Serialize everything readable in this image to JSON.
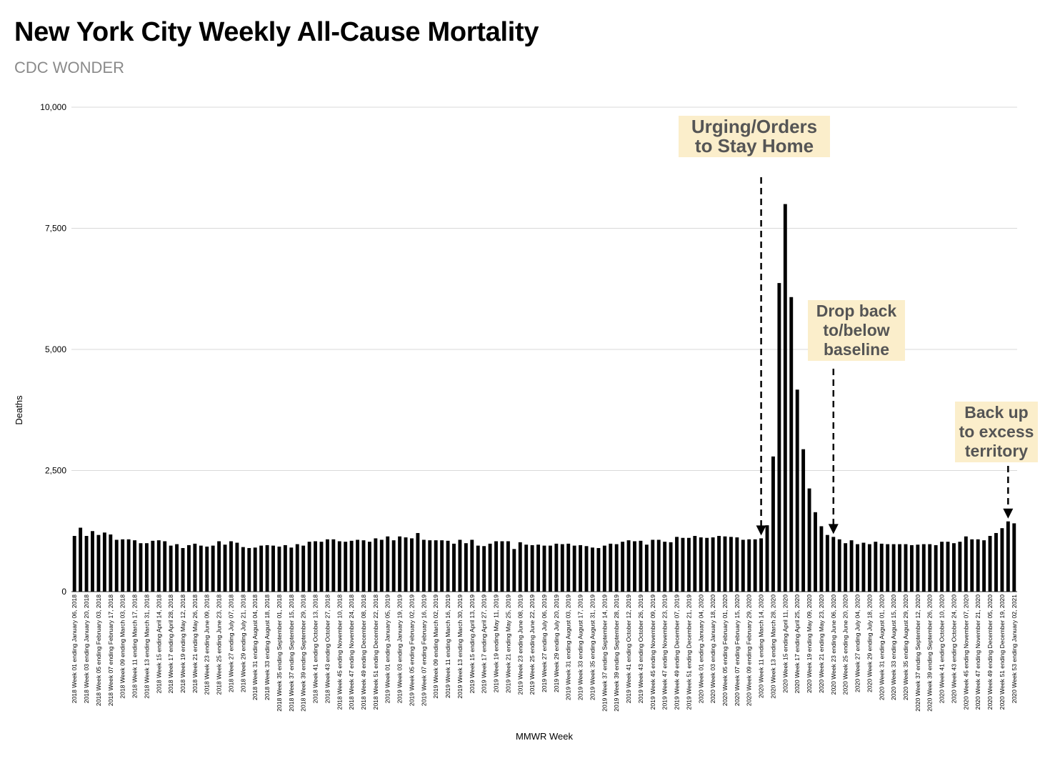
{
  "title": "New York City Weekly All-Cause Mortality",
  "subtitle": "CDC WONDER",
  "annotations": [
    {
      "id": "stay",
      "lines": [
        "Urging/Orders",
        "to Stay Home"
      ],
      "week_index": 114
    },
    {
      "id": "drop",
      "lines": [
        "Drop back",
        "to/below",
        "baseline"
      ],
      "week_index": 126
    },
    {
      "id": "back",
      "lines": [
        "Back up",
        "to excess",
        "territory"
      ],
      "week_index": 155
    }
  ],
  "chart_data": {
    "type": "bar",
    "title": "New York City Weekly All-Cause Mortality",
    "subtitle": "CDC WONDER",
    "xlabel": "MMWR Week",
    "ylabel": "Deaths",
    "ylim": [
      0,
      10000
    ],
    "yticks": [
      0,
      2500,
      5000,
      7500,
      10000
    ],
    "ytick_labels": [
      "0",
      "2,500",
      "5,000",
      "7,500",
      "10,000"
    ],
    "grid": true,
    "bar_color": "#000000",
    "xtick_labels": [
      "2018 Week 01 ending January 06, 2018",
      "2018 Week 03 ending January 20, 2018",
      "2018 Week 05 ending February 03, 2018",
      "2018 Week 07 ending February 17, 2018",
      "2018 Week 09 ending March 03, 2018",
      "2018 Week 11 ending March 17, 2018",
      "2018 Week 13 ending March 31, 2018",
      "2018 Week 15 ending April 14, 2018",
      "2018 Week 17 ending April 28, 2018",
      "2018 Week 19 ending May 12, 2018",
      "2018 Week 21 ending May 26, 2018",
      "2018 Week 23 ending June 09, 2018",
      "2018 Week 25 ending June 23, 2018",
      "2018 Week 27 ending July 07, 2018",
      "2018 Week 29 ending July 21, 2018",
      "2018 Week 31 ending August 04, 2018",
      "2018 Week 33 ending August 18, 2018",
      "2018 Week 35 ending September 01, 2018",
      "2018 Week 37 ending September 15, 2018",
      "2018 Week 39 ending September 29, 2018",
      "2018 Week 41 ending October 13, 2018",
      "2018 Week 43 ending October 27, 2018",
      "2018 Week 45 ending November 10, 2018",
      "2018 Week 47 ending November 24, 2018",
      "2018 Week 49 ending December 08, 2018",
      "2018 Week 51 ending December 22, 2018",
      "2019 Week 01 ending January 05, 2019",
      "2019 Week 03 ending January 19, 2019",
      "2019 Week 05 ending February 02, 2019",
      "2019 Week 07 ending February 16, 2019",
      "2019 Week 09 ending March 02, 2019",
      "2019 Week 11 ending March 16, 2019",
      "2019 Week 13 ending March 30, 2019",
      "2019 Week 15 ending April 13, 2019",
      "2019 Week 17 ending April 27, 2019",
      "2019 Week 19 ending May 11, 2019",
      "2019 Week 21 ending May 25, 2019",
      "2019 Week 23 ending June 08, 2019",
      "2019 Week 25 ending June 22, 2019",
      "2019 Week 27 ending July 06, 2019",
      "2019 Week 29 ending July 20, 2019",
      "2019 Week 31 ending August 03, 2019",
      "2019 Week 33 ending August 17, 2019",
      "2019 Week 35 ending August 31, 2019",
      "2019 Week 37 ending September 14, 2019",
      "2019 Week 39 ending September 28, 2019",
      "2019 Week 41 ending October 12, 2019",
      "2019 Week 43 ending October 26, 2019",
      "2019 Week 45 ending November 09, 2019",
      "2019 Week 47 ending November 23, 2019",
      "2019 Week 49 ending December 07, 2019",
      "2019 Week 51 ending December 21, 2019",
      "2020 Week 01 ending January 04, 2020",
      "2020 Week 03 ending January 18, 2020",
      "2020 Week 05 ending February 01, 2020",
      "2020 Week 07 ending February 15, 2020",
      "2020 Week 09 ending February 29, 2020",
      "2020 Week 11 ending March 14, 2020",
      "2020 Week 13 ending March 28, 2020",
      "2020 Week 15 ending April 11, 2020",
      "2020 Week 17 ending April 25, 2020",
      "2020 Week 19 ending May 09, 2020",
      "2020 Week 21 ending May 23, 2020",
      "2020 Week 23 ending June 06, 2020",
      "2020 Week 25 ending June 20, 2020",
      "2020 Week 27 ending July 04, 2020",
      "2020 Week 29 ending July 18, 2020",
      "2020 Week 31 ending August 01, 2020",
      "2020 Week 33 ending August 15, 2020",
      "2020 Week 35 ending August 29, 2020",
      "2020 Week 37 ending September 12, 2020",
      "2020 Week 39 ending September 26, 2020",
      "2020 Week 41 ending October 10, 2020",
      "2020 Week 43 ending October 24, 2020",
      "2020 Week 45 ending November 07, 2020",
      "2020 Week 47 ending November 21, 2020",
      "2020 Week 49 ending December 05, 2020",
      "2020 Week 51 ending December 19, 2020",
      "2020 Week 53 ending January 02, 2021"
    ],
    "values": [
      1150,
      1320,
      1150,
      1250,
      1170,
      1220,
      1180,
      1070,
      1080,
      1080,
      1060,
      1000,
      1000,
      1050,
      1060,
      1040,
      950,
      980,
      900,
      960,
      990,
      950,
      930,
      950,
      1040,
      970,
      1040,
      1010,
      920,
      900,
      910,
      950,
      960,
      950,
      930,
      960,
      910,
      980,
      950,
      1030,
      1040,
      1030,
      1080,
      1080,
      1040,
      1030,
      1050,
      1070,
      1060,
      1030,
      1100,
      1070,
      1140,
      1060,
      1140,
      1120,
      1100,
      1210,
      1070,
      1060,
      1060,
      1060,
      1050,
      990,
      1070,
      1000,
      1070,
      950,
      940,
      990,
      1040,
      1040,
      1040,
      880,
      1020,
      970,
      960,
      970,
      950,
      950,
      990,
      980,
      990,
      950,
      960,
      940,
      910,
      900,
      950,
      990,
      980,
      1030,
      1060,
      1040,
      1050,
      970,
      1070,
      1070,
      1030,
      1020,
      1130,
      1110,
      1110,
      1150,
      1120,
      1110,
      1120,
      1150,
      1140,
      1130,
      1120,
      1070,
      1080,
      1080,
      1100,
      1370,
      2790,
      6370,
      8000,
      6080,
      4170,
      2940,
      2130,
      1640,
      1350,
      1170,
      1130,
      1080,
      1000,
      1060,
      980,
      1010,
      980,
      1030,
      990,
      980,
      980,
      980,
      980,
      960,
      970,
      980,
      980,
      960,
      1030,
      1030,
      1000,
      1030,
      1140,
      1080,
      1080,
      1060,
      1150,
      1210,
      1310,
      1450,
      1410
    ]
  }
}
